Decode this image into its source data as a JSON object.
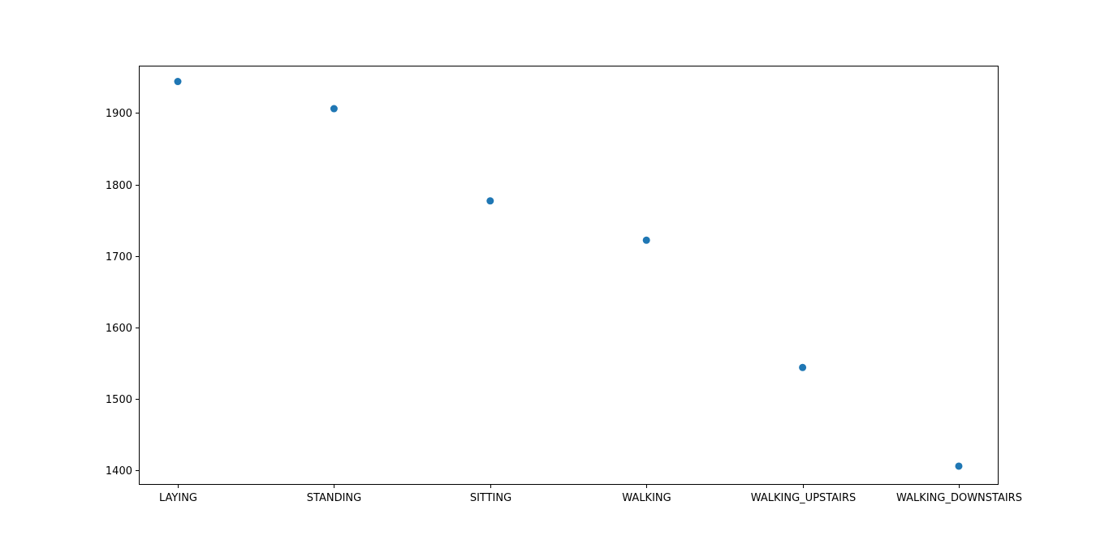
{
  "chart_data": {
    "type": "scatter",
    "title": "",
    "xlabel": "",
    "ylabel": "",
    "categories": [
      "LAYING",
      "STANDING",
      "SITTING",
      "WALKING",
      "WALKING_UPSTAIRS",
      "WALKING_DOWNSTAIRS"
    ],
    "values": [
      1944,
      1906,
      1777,
      1722,
      1544,
      1406
    ],
    "ylim": [
      1381,
      1965
    ],
    "yticks": [
      1400,
      1500,
      1600,
      1700,
      1800,
      1900
    ],
    "ytick_labels": [
      "1400",
      "1500",
      "1600",
      "1700",
      "1800",
      "1900"
    ],
    "grid": false,
    "legend": "none",
    "marker_color": "#1f77b4"
  }
}
